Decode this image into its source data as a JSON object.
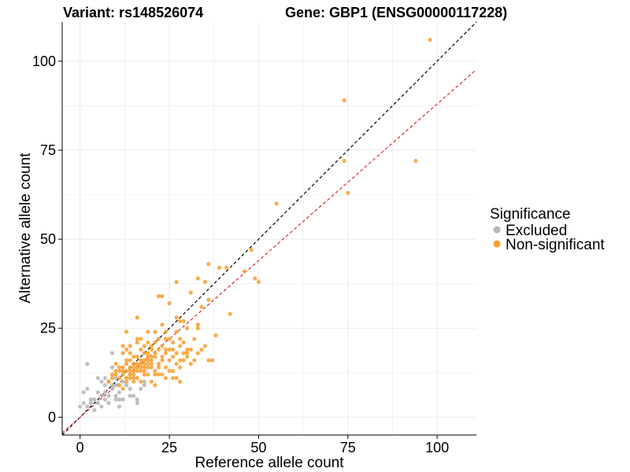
{
  "title_left": "Variant: rs148526074",
  "title_right": "Gene: GBP1 (ENSG00000117228)",
  "colors": {
    "excluded": "#b5b5b5",
    "non_significant": "#f7a02e",
    "identity_line": "#000000",
    "fit_line": "#e3262b",
    "grid": "#ebebeb"
  },
  "chart_data": {
    "type": "scatter",
    "xlabel": "Reference allele count",
    "ylabel": "Alternative allele count",
    "xlim": [
      -5,
      111
    ],
    "ylim": [
      -5,
      111
    ],
    "x_ticks": [
      0,
      25,
      50,
      75,
      100
    ],
    "y_ticks": [
      0,
      25,
      50,
      75,
      100
    ],
    "grid": true,
    "legend": {
      "title": "Significance",
      "position": "right",
      "entries": [
        "Excluded",
        "Non-significant"
      ]
    },
    "reference_lines": [
      {
        "style": "dashed",
        "color": "#000000",
        "slope": 1.0,
        "intercept": 0
      },
      {
        "style": "dashed",
        "color": "#e3262b",
        "slope": 0.88,
        "intercept": 0
      }
    ],
    "series": [
      {
        "name": "Excluded",
        "color": "#b5b5b5",
        "points": [
          [
            0,
            3
          ],
          [
            1,
            7
          ],
          [
            1,
            4
          ],
          [
            2,
            8
          ],
          [
            2,
            15
          ],
          [
            2,
            3
          ],
          [
            3,
            5
          ],
          [
            4,
            5
          ],
          [
            4,
            2
          ],
          [
            5,
            11
          ],
          [
            5,
            7
          ],
          [
            5,
            4
          ],
          [
            6,
            10
          ],
          [
            6,
            6
          ],
          [
            6,
            3
          ],
          [
            7,
            5
          ],
          [
            7,
            9
          ],
          [
            7,
            11
          ],
          [
            8,
            6
          ],
          [
            8,
            10
          ],
          [
            8,
            4
          ],
          [
            9,
            9
          ],
          [
            9,
            14
          ],
          [
            9,
            8
          ],
          [
            9,
            18
          ],
          [
            10,
            6
          ],
          [
            10,
            5
          ],
          [
            10,
            11
          ],
          [
            10,
            9
          ],
          [
            11,
            7
          ],
          [
            11,
            3
          ],
          [
            12,
            10
          ],
          [
            12,
            5
          ],
          [
            13,
            9
          ],
          [
            14,
            6
          ],
          [
            14,
            8
          ],
          [
            15,
            6
          ],
          [
            16,
            4
          ],
          [
            16,
            5
          ],
          [
            17,
            8
          ],
          [
            18,
            10
          ],
          [
            18,
            9
          ],
          [
            3,
            4
          ],
          [
            7,
            7
          ],
          [
            11,
            5
          ]
        ]
      },
      {
        "name": "Non-significant",
        "color": "#f7a02e",
        "points": [
          [
            98,
            106
          ],
          [
            74,
            89
          ],
          [
            94,
            72
          ],
          [
            74,
            72
          ],
          [
            75,
            63
          ],
          [
            55,
            60
          ],
          [
            48,
            47
          ],
          [
            49,
            39
          ],
          [
            50,
            38
          ],
          [
            36,
            43
          ],
          [
            39,
            42
          ],
          [
            41,
            42
          ],
          [
            33,
            39
          ],
          [
            27,
            38
          ],
          [
            35,
            38
          ],
          [
            46,
            41
          ],
          [
            23,
            34
          ],
          [
            22,
            34
          ],
          [
            31,
            35
          ],
          [
            36,
            33
          ],
          [
            25,
            32
          ],
          [
            34,
            31
          ],
          [
            42,
            29
          ],
          [
            27,
            28
          ],
          [
            29,
            27
          ],
          [
            33,
            26
          ],
          [
            16,
            28
          ],
          [
            13,
            24
          ],
          [
            21,
            24
          ],
          [
            23,
            26
          ],
          [
            19,
            24
          ],
          [
            28,
            27
          ],
          [
            24,
            24
          ],
          [
            14,
            20
          ],
          [
            16,
            22
          ],
          [
            17,
            19
          ],
          [
            18,
            20
          ],
          [
            19,
            21
          ],
          [
            20,
            19
          ],
          [
            21,
            18
          ],
          [
            22,
            19
          ],
          [
            23,
            17
          ],
          [
            24,
            22
          ],
          [
            25,
            19
          ],
          [
            26,
            19
          ],
          [
            27,
            18
          ],
          [
            28,
            20
          ],
          [
            29,
            21
          ],
          [
            30,
            18
          ],
          [
            31,
            19
          ],
          [
            32,
            16
          ],
          [
            33,
            18
          ],
          [
            34,
            19
          ],
          [
            35,
            20
          ],
          [
            36,
            16
          ],
          [
            37,
            16
          ],
          [
            38,
            23
          ],
          [
            10,
            15
          ],
          [
            11,
            13
          ],
          [
            12,
            14
          ],
          [
            13,
            16
          ],
          [
            14,
            13
          ],
          [
            15,
            15
          ],
          [
            16,
            17
          ],
          [
            17,
            16
          ],
          [
            18,
            14
          ],
          [
            19,
            15
          ],
          [
            20,
            14
          ],
          [
            21,
            17
          ],
          [
            22,
            15
          ],
          [
            23,
            12
          ],
          [
            24,
            14
          ],
          [
            25,
            13
          ],
          [
            26,
            11
          ],
          [
            27,
            11
          ],
          [
            28,
            10
          ],
          [
            12,
            18
          ],
          [
            13,
            11
          ],
          [
            14,
            12
          ],
          [
            15,
            13
          ],
          [
            16,
            11
          ],
          [
            17,
            10
          ],
          [
            18,
            12
          ],
          [
            19,
            12
          ],
          [
            20,
            10
          ],
          [
            21,
            9
          ],
          [
            8,
            10
          ],
          [
            9,
            11
          ],
          [
            10,
            12
          ],
          [
            11,
            9
          ],
          [
            12,
            8
          ],
          [
            13,
            10
          ],
          [
            14,
            14
          ],
          [
            15,
            11
          ],
          [
            16,
            14
          ],
          [
            17,
            13
          ],
          [
            18,
            15
          ],
          [
            19,
            16
          ],
          [
            20,
            17
          ],
          [
            21,
            13
          ],
          [
            22,
            12
          ],
          [
            23,
            16
          ],
          [
            24,
            18
          ],
          [
            25,
            16
          ],
          [
            26,
            17
          ],
          [
            27,
            15
          ],
          [
            28,
            14
          ],
          [
            29,
            16
          ],
          [
            30,
            17
          ],
          [
            31,
            15
          ],
          [
            32,
            22
          ],
          [
            12,
            20
          ],
          [
            13,
            19
          ],
          [
            14,
            18
          ],
          [
            15,
            17
          ],
          [
            16,
            21
          ],
          [
            17,
            22
          ],
          [
            18,
            18
          ],
          [
            19,
            18
          ],
          [
            20,
            20
          ],
          [
            21,
            21
          ],
          [
            22,
            22
          ],
          [
            23,
            20
          ],
          [
            24,
            19
          ],
          [
            25,
            22
          ],
          [
            26,
            21
          ],
          [
            27,
            24
          ],
          [
            28,
            22
          ],
          [
            29,
            18
          ],
          [
            30,
            19
          ],
          [
            15,
            12
          ],
          [
            16,
            13
          ],
          [
            17,
            14
          ],
          [
            18,
            13
          ],
          [
            19,
            14
          ],
          [
            20,
            15
          ],
          [
            21,
            12
          ],
          [
            22,
            14
          ],
          [
            11,
            14
          ],
          [
            12,
            13
          ],
          [
            13,
            15
          ],
          [
            14,
            16
          ],
          [
            15,
            14
          ],
          [
            16,
            15
          ],
          [
            17,
            15
          ],
          [
            18,
            16
          ],
          [
            19,
            17
          ],
          [
            20,
            16
          ],
          [
            9,
            12
          ],
          [
            10,
            13
          ],
          [
            11,
            11
          ],
          [
            12,
            12
          ],
          [
            13,
            13
          ],
          [
            14,
            11
          ],
          [
            15,
            10
          ],
          [
            24,
            11
          ],
          [
            26,
            13
          ],
          [
            28,
            16
          ],
          [
            30,
            25
          ],
          [
            33,
            25
          ]
        ]
      }
    ]
  }
}
